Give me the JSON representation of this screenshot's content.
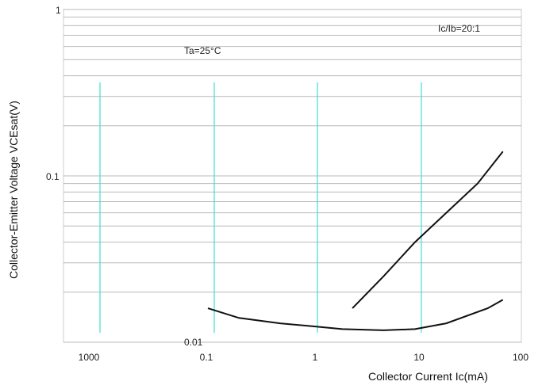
{
  "chart_data": {
    "type": "line",
    "xlabel": "Collector Current   Ic(mA)",
    "ylabel": "Collector-Emitter Voltage   VCEsat(V)",
    "x_ticks": [
      "1000",
      "0.1",
      "1",
      "10",
      "100"
    ],
    "y_ticks": [
      "1",
      "0.1",
      "0.01"
    ],
    "x_scale": "log",
    "y_scale": "log",
    "ylim": [
      0.01,
      1
    ],
    "grid": true,
    "legend": {
      "text": "Ic/Ib=20:1",
      "placement": "top-right"
    },
    "series": [
      {
        "name": "Ta=25°C",
        "x": [
          0.1,
          0.2,
          0.5,
          1,
          2,
          5,
          10,
          20,
          50,
          70
        ],
        "y": [
          0.016,
          0.014,
          0.013,
          0.0125,
          0.012,
          0.0118,
          0.012,
          0.013,
          0.016,
          0.018
        ]
      },
      {
        "name": "",
        "x": [
          2.5,
          5,
          10,
          20,
          40,
          70
        ],
        "y": [
          0.016,
          0.025,
          0.04,
          0.06,
          0.09,
          0.14
        ]
      }
    ],
    "annotations": [
      "Ta=25°C"
    ]
  },
  "colors": {
    "line": "#111111",
    "vgrid": "#40e0d0",
    "grid": "#b8b8b8"
  }
}
